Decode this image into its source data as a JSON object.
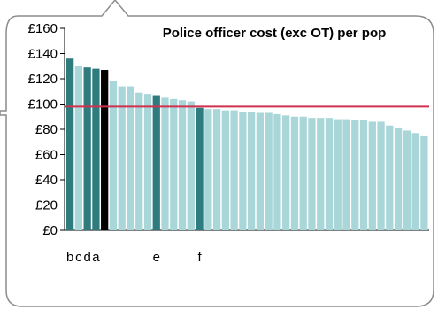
{
  "chart_data": {
    "type": "bar",
    "title": "Police officer cost (exc OT) per pop",
    "ylim": [
      0,
      160
    ],
    "yticks": [
      "£160",
      "£140",
      "£120",
      "£100",
      "£80",
      "£60",
      "£40",
      "£20",
      "£0"
    ],
    "reference_line": 98,
    "grid": false,
    "values": [
      136,
      130,
      129,
      128,
      127,
      118,
      114,
      114,
      109,
      108,
      107,
      105,
      104,
      103,
      102,
      97,
      96,
      96,
      95,
      95,
      94,
      94,
      93,
      93,
      92,
      91,
      90,
      90,
      89,
      89,
      89,
      88,
      88,
      87,
      87,
      86,
      86,
      83,
      81,
      79,
      77,
      75
    ],
    "highlight_labels": [
      "b",
      "c",
      "d",
      "a",
      "",
      "",
      "",
      "",
      "",
      "",
      "e",
      "",
      "",
      "",
      "",
      "f",
      "",
      "",
      "",
      "",
      "",
      "",
      "",
      "",
      "",
      "",
      "",
      "",
      "",
      "",
      "",
      "",
      "",
      "",
      "",
      "",
      "",
      "",
      "",
      "",
      "",
      ""
    ],
    "bar_roles": [
      "dark",
      "light",
      "dark",
      "dark",
      "black",
      "light",
      "light",
      "light",
      "light",
      "light",
      "dark",
      "light",
      "light",
      "light",
      "light",
      "dark",
      "light",
      "light",
      "light",
      "light",
      "light",
      "light",
      "light",
      "light",
      "light",
      "light",
      "light",
      "light",
      "light",
      "light",
      "light",
      "light",
      "light",
      "light",
      "light",
      "light",
      "light",
      "light",
      "light",
      "light",
      "light",
      "light"
    ],
    "colors": {
      "light": "#a9d6d8",
      "dark": "#2f7c7f",
      "black": "#000000",
      "reference": "#d0314f",
      "frame": "#8c8c8c"
    }
  }
}
